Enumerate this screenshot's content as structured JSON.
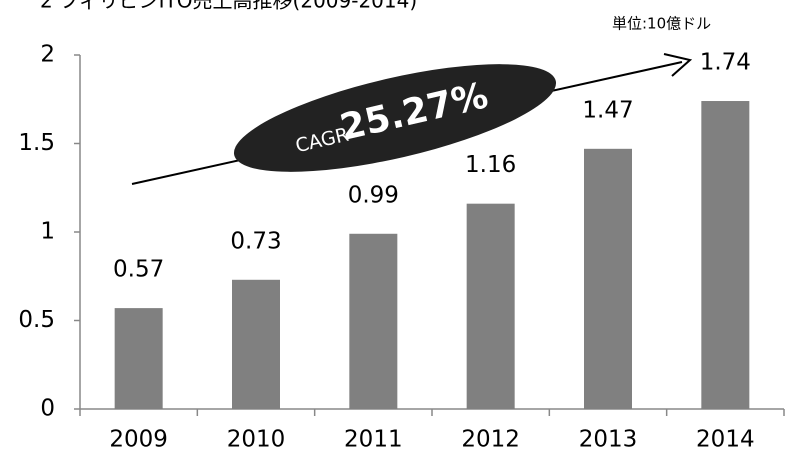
{
  "chart_data": {
    "type": "bar",
    "title": "2 フィリピンITO売上高推移(2009-2014)",
    "subtitle": "単位:10億ドル",
    "annotations": [
      "CAGR",
      "25.27%"
    ],
    "categories": [
      "2009",
      "2010",
      "2011",
      "2012",
      "2013",
      "2014"
    ],
    "values": [
      0.57,
      0.73,
      0.99,
      1.16,
      1.47,
      1.74
    ],
    "color": "#808080",
    "ylim": [
      0,
      2
    ],
    "yticks": [
      0,
      0.5,
      1,
      1.5,
      2
    ],
    "grid": false
  }
}
